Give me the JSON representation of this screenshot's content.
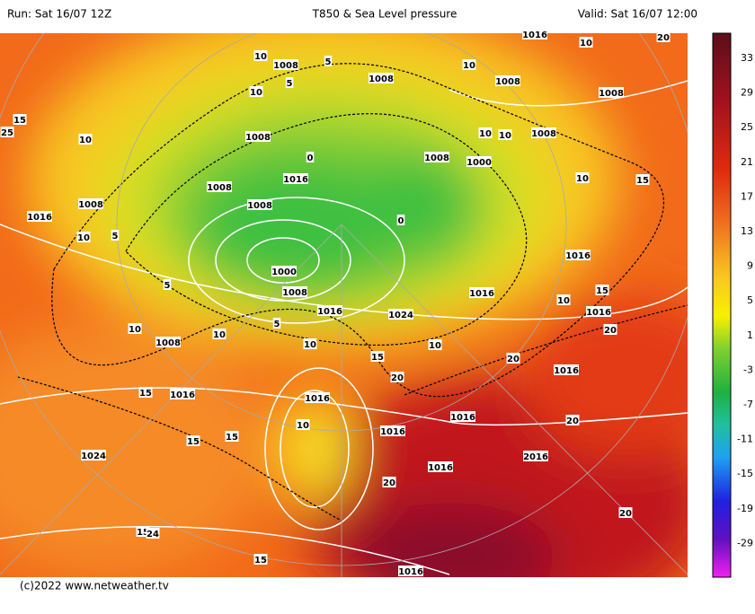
{
  "header": {
    "run": "Run: Sat 16/07 12Z",
    "title": "T850 & Sea Level pressure",
    "valid": "Valid: Sat 16/07 12:00"
  },
  "footer": "(c)2022 www.netweather.tv",
  "colorbar": {
    "labels": [
      "33",
      "29",
      "25",
      "21",
      "17",
      "13",
      "9",
      "5",
      "1",
      "-3",
      "-7",
      "-11",
      "-15",
      "-19",
      "-29"
    ]
  },
  "contour_labels": [
    "1016",
    "10",
    "20",
    "10",
    "1008",
    "5",
    "10",
    "1008",
    "1008",
    "1008",
    "10",
    "5",
    "15",
    "25",
    "10",
    "1008",
    "0",
    "1008",
    "1000",
    "1008",
    "10",
    "10",
    "15",
    "1016",
    "1008",
    "1008",
    "1016",
    "1008",
    "0",
    "10",
    "5",
    "1000",
    "1008",
    "1016",
    "1024",
    "1016",
    "1016",
    "15",
    "10",
    "1016",
    "5",
    "10",
    "5",
    "1008",
    "10",
    "10",
    "10",
    "15",
    "20",
    "20",
    "1016",
    "20",
    "15",
    "1016",
    "1016",
    "1016",
    "10",
    "1016",
    "20",
    "15",
    "15",
    "1024",
    "1016",
    "2016",
    "20",
    "20",
    "15",
    "24",
    "15",
    "1016",
    "10"
  ]
}
